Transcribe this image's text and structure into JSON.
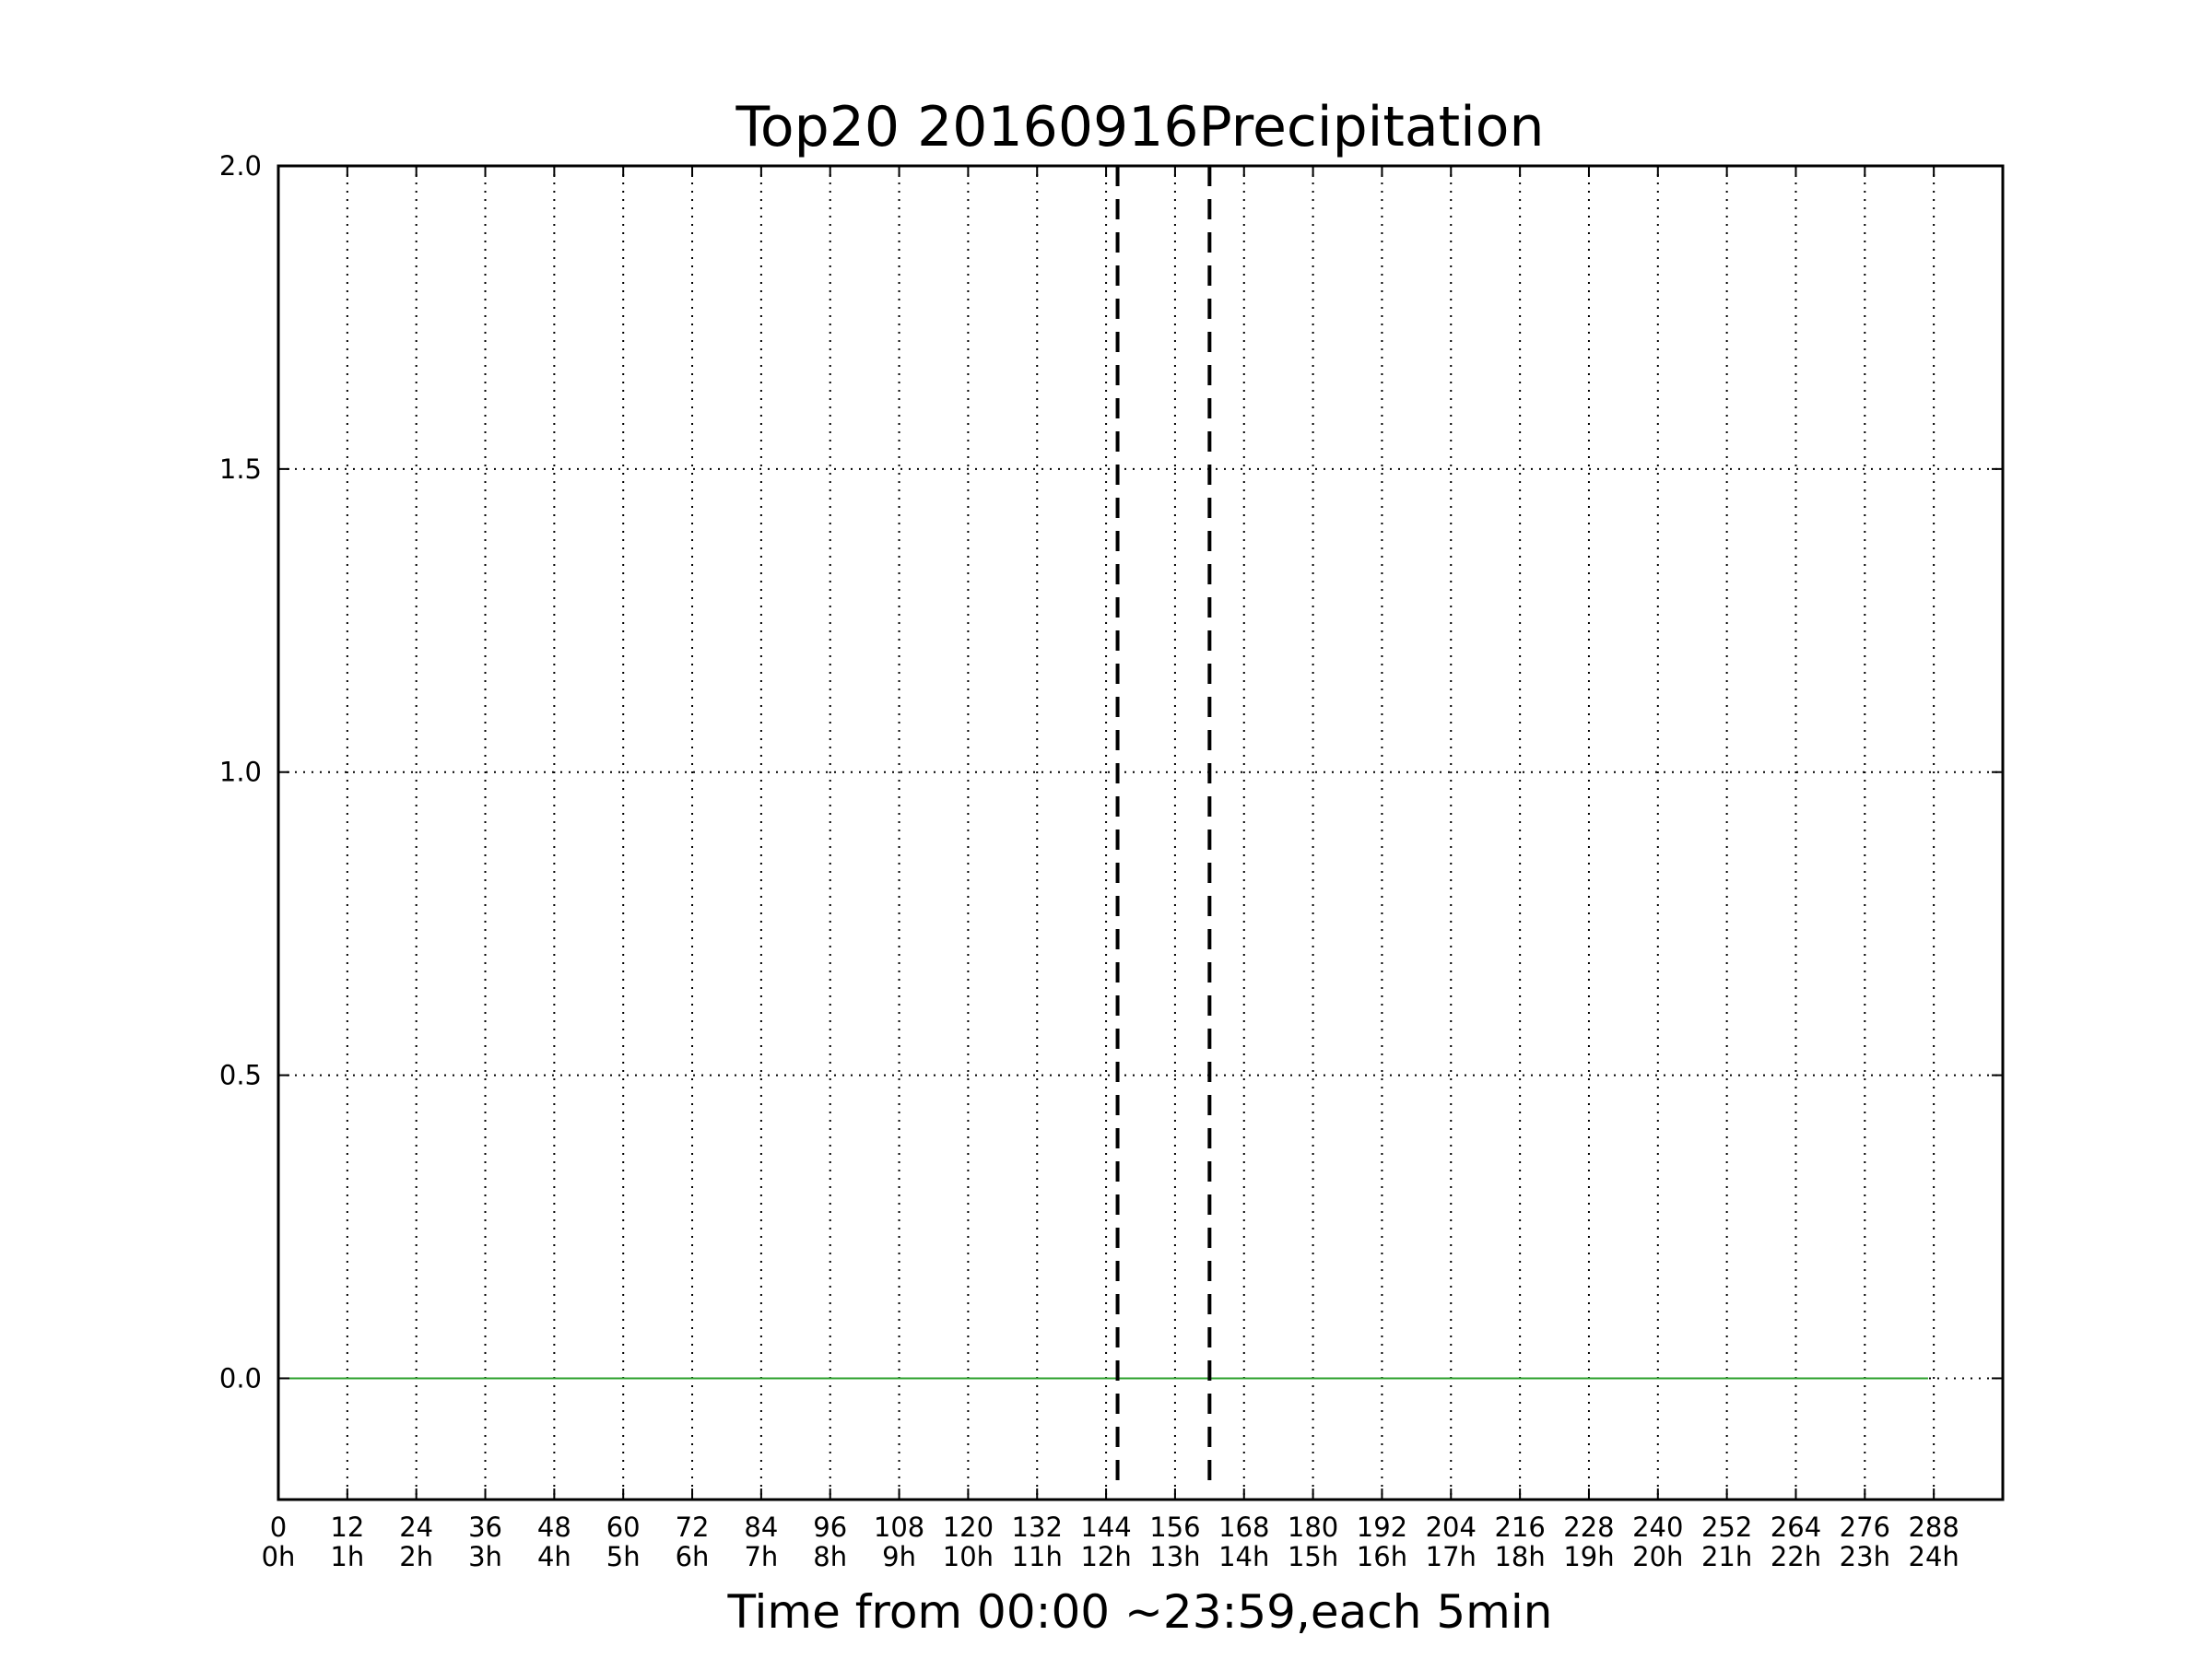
{
  "chart_data": {
    "type": "line",
    "title": "Top20 20160916Precipitation",
    "xlabel": "Time from 00:00 ~23:59,each 5min",
    "ylabel": "",
    "xlim": [
      0,
      300
    ],
    "ylim": [
      -0.2,
      2.0
    ],
    "xticks": [
      0,
      12,
      24,
      36,
      48,
      60,
      72,
      84,
      96,
      108,
      120,
      132,
      144,
      156,
      168,
      180,
      192,
      204,
      216,
      228,
      240,
      252,
      264,
      276,
      288
    ],
    "xtick_labels": [
      "0",
      "12",
      "24",
      "36",
      "48",
      "60",
      "72",
      "84",
      "96",
      "108",
      "120",
      "132",
      "144",
      "156",
      "168",
      "180",
      "192",
      "204",
      "216",
      "228",
      "240",
      "252",
      "264",
      "276",
      "288"
    ],
    "xtick_hour_labels": [
      "0h",
      "1h",
      "2h",
      "3h",
      "4h",
      "5h",
      "6h",
      "7h",
      "8h",
      "9h",
      "10h",
      "11h",
      "12h",
      "13h",
      "14h",
      "15h",
      "16h",
      "17h",
      "18h",
      "19h",
      "20h",
      "21h",
      "22h",
      "23h",
      "24h"
    ],
    "yticks": [
      0.0,
      0.5,
      1.0,
      1.5,
      2.0
    ],
    "ytick_labels": [
      "0.0",
      "0.5",
      "1.0",
      "1.5",
      "2.0"
    ],
    "grid": true,
    "series": [
      {
        "x": [
          0,
          287
        ],
        "values": [
          0,
          0
        ],
        "color": "#2ca02c"
      }
    ],
    "vertical_markers": [
      146,
      162
    ],
    "colors": {
      "axis": "#000000",
      "grid": "#000000",
      "series": "#2ca02c",
      "marker": "#000000"
    }
  }
}
